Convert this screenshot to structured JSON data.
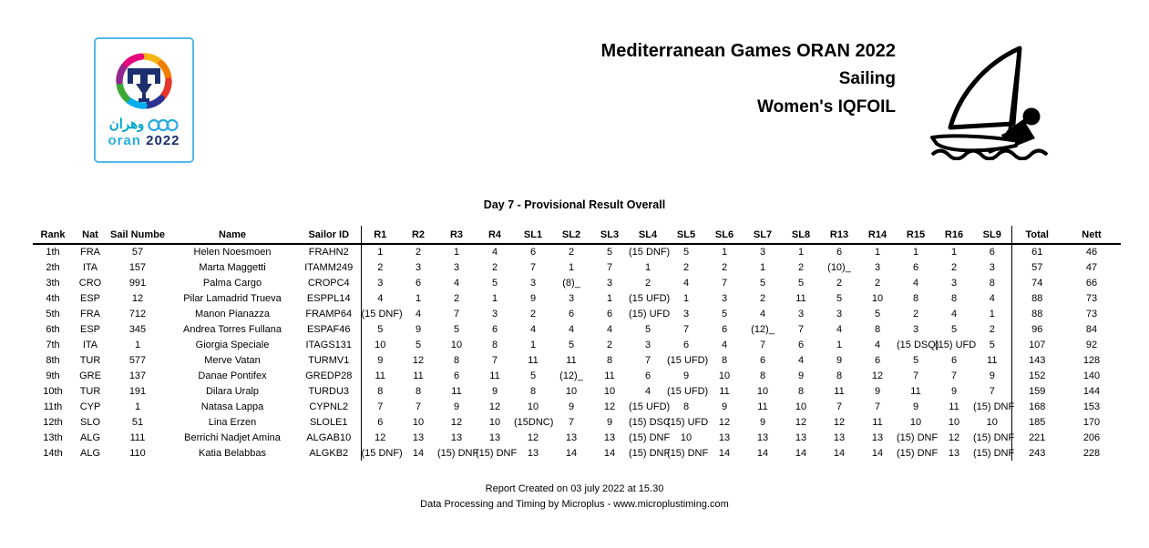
{
  "header": {
    "event_title": "Mediterranean Games ORAN 2022",
    "sport": "Sailing",
    "category": "Women's IQFOIL",
    "logo": {
      "arabic": "وهران",
      "city": "oran",
      "year": "2022"
    }
  },
  "subtitle": "Day 7 - Provisional Result Overall",
  "colors": {
    "logo_border": "#53b9e9",
    "logo_blue": "#29abe2",
    "logo_navy": "#1b2f6e",
    "logo_teal": "#00a7cf"
  },
  "icons": {
    "windsurfer": "windsurfer-icon",
    "logo_star": "star-swirl-icon",
    "logo_rings": "three-rings-icon"
  },
  "table": {
    "columns": [
      "Rank",
      "Nat",
      "Sail Numbe",
      "Name",
      "Sailor ID",
      "R1",
      "R2",
      "R3",
      "R4",
      "SL1",
      "SL2",
      "SL3",
      "SL4",
      "SL5",
      "SL6",
      "SL7",
      "SL8",
      "R13",
      "R14",
      "R15",
      "R16",
      "SL9",
      "Total",
      "Nett"
    ],
    "rows": [
      [
        "1th",
        "FRA",
        "57",
        "Helen Noesmoen",
        "FRAHN2",
        "1",
        "2",
        "1",
        "4",
        "6",
        "2",
        "5",
        "(15 DNF)",
        "5",
        "1",
        "3",
        "1",
        "6",
        "1",
        "1",
        "1",
        "6",
        "61",
        "46"
      ],
      [
        "2th",
        "ITA",
        "157",
        "Marta Maggetti",
        "ITAMM249",
        "2",
        "3",
        "3",
        "2",
        "7",
        "1",
        "7",
        "1",
        "2",
        "2",
        "1",
        "2",
        "(10)_",
        "3",
        "6",
        "2",
        "3",
        "57",
        "47"
      ],
      [
        "3th",
        "CRO",
        "991",
        "Palma Cargo",
        "CROPC4",
        "3",
        "6",
        "4",
        "5",
        "3",
        "(8)_",
        "3",
        "2",
        "4",
        "7",
        "5",
        "5",
        "2",
        "2",
        "4",
        "3",
        "8",
        "74",
        "66"
      ],
      [
        "4th",
        "ESP",
        "12",
        "Pilar Lamadrid Trueva",
        "ESPPL14",
        "4",
        "1",
        "2",
        "1",
        "9",
        "3",
        "1",
        "(15 UFD)",
        "1",
        "3",
        "2",
        "11",
        "5",
        "10",
        "8",
        "8",
        "4",
        "88",
        "73"
      ],
      [
        "5th",
        "FRA",
        "712",
        "Manon Pianazza",
        "FRAMP64",
        "(15 DNF)",
        "4",
        "7",
        "3",
        "2",
        "6",
        "6",
        "(15) UFD",
        "3",
        "5",
        "4",
        "3",
        "3",
        "5",
        "2",
        "4",
        "1",
        "88",
        "73"
      ],
      [
        "6th",
        "ESP",
        "345",
        "Andrea Torres Fullana",
        "ESPAF46",
        "5",
        "9",
        "5",
        "6",
        "4",
        "4",
        "4",
        "5",
        "7",
        "6",
        "(12)_",
        "7",
        "4",
        "8",
        "3",
        "5",
        "2",
        "96",
        "84"
      ],
      [
        "7th",
        "ITA",
        "1",
        "Giorgia Speciale",
        "ITAGS131",
        "10",
        "5",
        "10",
        "8",
        "1",
        "5",
        "2",
        "3",
        "6",
        "4",
        "7",
        "6",
        "1",
        "4",
        "(15 DSQ)",
        "(15) UFD",
        "5",
        "107",
        "92"
      ],
      [
        "8th",
        "TUR",
        "577",
        "Merve Vatan",
        "TURMV1",
        "9",
        "12",
        "8",
        "7",
        "11",
        "11",
        "8",
        "7",
        "(15 UFD)",
        "8",
        "6",
        "4",
        "9",
        "6",
        "5",
        "6",
        "11",
        "143",
        "128"
      ],
      [
        "9th",
        "GRE",
        "137",
        "Danae Pontifex",
        "GREDP28",
        "11",
        "11",
        "6",
        "11",
        "5",
        "(12)_",
        "11",
        "6",
        "9",
        "10",
        "8",
        "9",
        "8",
        "12",
        "7",
        "7",
        "9",
        "152",
        "140"
      ],
      [
        "10th",
        "TUR",
        "191",
        "Dilara Uralp",
        "TURDU3",
        "8",
        "8",
        "11",
        "9",
        "8",
        "10",
        "10",
        "4",
        "(15 UFD)",
        "11",
        "10",
        "8",
        "11",
        "9",
        "11",
        "9",
        "7",
        "159",
        "144"
      ],
      [
        "11th",
        "CYP",
        "1",
        "Natasa Lappa",
        "CYPNL2",
        "7",
        "7",
        "9",
        "12",
        "10",
        "9",
        "12",
        "(15 UFD)",
        "8",
        "9",
        "11",
        "10",
        "7",
        "7",
        "9",
        "11",
        "(15) DNF",
        "168",
        "153"
      ],
      [
        "12th",
        "SLO",
        "51",
        "Lina Erzen",
        "SLOLE1",
        "6",
        "10",
        "12",
        "10",
        "(15DNC)",
        "7",
        "9",
        "(15) DSC",
        "(15) UFD",
        "12",
        "9",
        "12",
        "12",
        "11",
        "10",
        "10",
        "10",
        "185",
        "170"
      ],
      [
        "13th",
        "ALG",
        "111",
        "Berrichi Nadjet Amina",
        "ALGAB10",
        "12",
        "13",
        "13",
        "13",
        "12",
        "13",
        "13",
        "(15) DNF",
        "10",
        "13",
        "13",
        "13",
        "13",
        "13",
        "(15) DNF",
        "12",
        "(15) DNF",
        "221",
        "206"
      ],
      [
        "14th",
        "ALG",
        "110",
        "Katia Belabbas",
        "ALGKB2",
        "(15 DNF)",
        "14",
        "(15) DNF",
        "(15) DNF",
        "13",
        "14",
        "14",
        "(15) DNF",
        "(15) DNF",
        "14",
        "14",
        "14",
        "14",
        "14",
        "(15) DNF",
        "13",
        "(15) DNF",
        "243",
        "228"
      ]
    ]
  },
  "footer": {
    "created": "Report Created on 03 july 2022 at 15.30",
    "credit": "Data Processing and Timing by Microplus - www.microplustiming.com"
  }
}
